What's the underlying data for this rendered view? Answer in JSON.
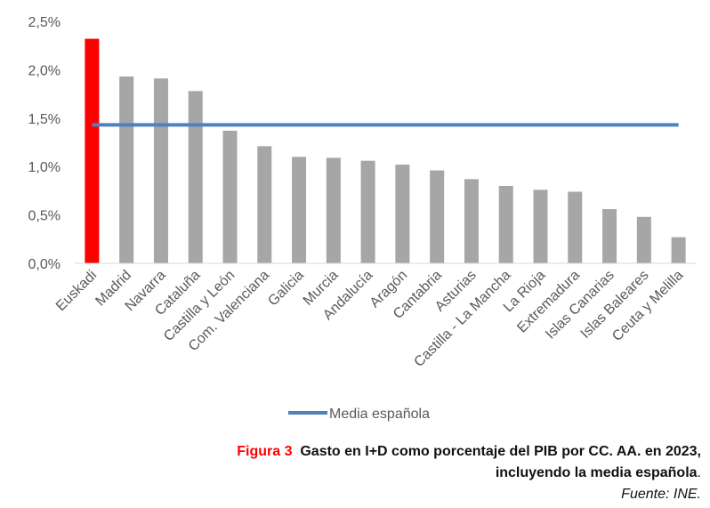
{
  "chart_data": {
    "type": "bar",
    "categories": [
      "Euskadi",
      "Madrid",
      "Navarra",
      "Cataluña",
      "Castilla y León",
      "Com. Valenciana",
      "Galicia",
      "Murcia",
      "Andalucía",
      "Aragón",
      "Cantabria",
      "Asturias",
      "Castilla - La Mancha",
      "La Rioja",
      "Extremadura",
      "Islas Canarias",
      "Islas Baleares",
      "Ceuta y Melilla"
    ],
    "values": [
      2.32,
      1.93,
      1.91,
      1.78,
      1.37,
      1.21,
      1.1,
      1.09,
      1.06,
      1.02,
      0.96,
      0.87,
      0.8,
      0.76,
      0.74,
      0.56,
      0.48,
      0.27
    ],
    "reference_line": {
      "name": "Media española",
      "value": 1.43
    },
    "ylim": [
      0,
      2.5
    ],
    "yticks": [
      "0,0%",
      "0,5%",
      "1,0%",
      "1,5%",
      "2,0%",
      "2,5%"
    ],
    "ytick_values": [
      0,
      0.5,
      1.0,
      1.5,
      2.0,
      2.5
    ],
    "legend": [
      "Media española"
    ],
    "colors": {
      "highlight": "#ff0000",
      "bar": "#a6a6a6",
      "line": "#4f81bd"
    },
    "highlight_index": 0,
    "title": "",
    "xlabel": "",
    "ylabel": ""
  },
  "caption": {
    "figure_label": "Figura 3",
    "title_line1": "Gasto en I+D como porcentaje del PIB por CC. AA. en 2023,",
    "title_line2": "incluyendo la media española",
    "title_end": ".",
    "source": "Fuente: INE."
  }
}
